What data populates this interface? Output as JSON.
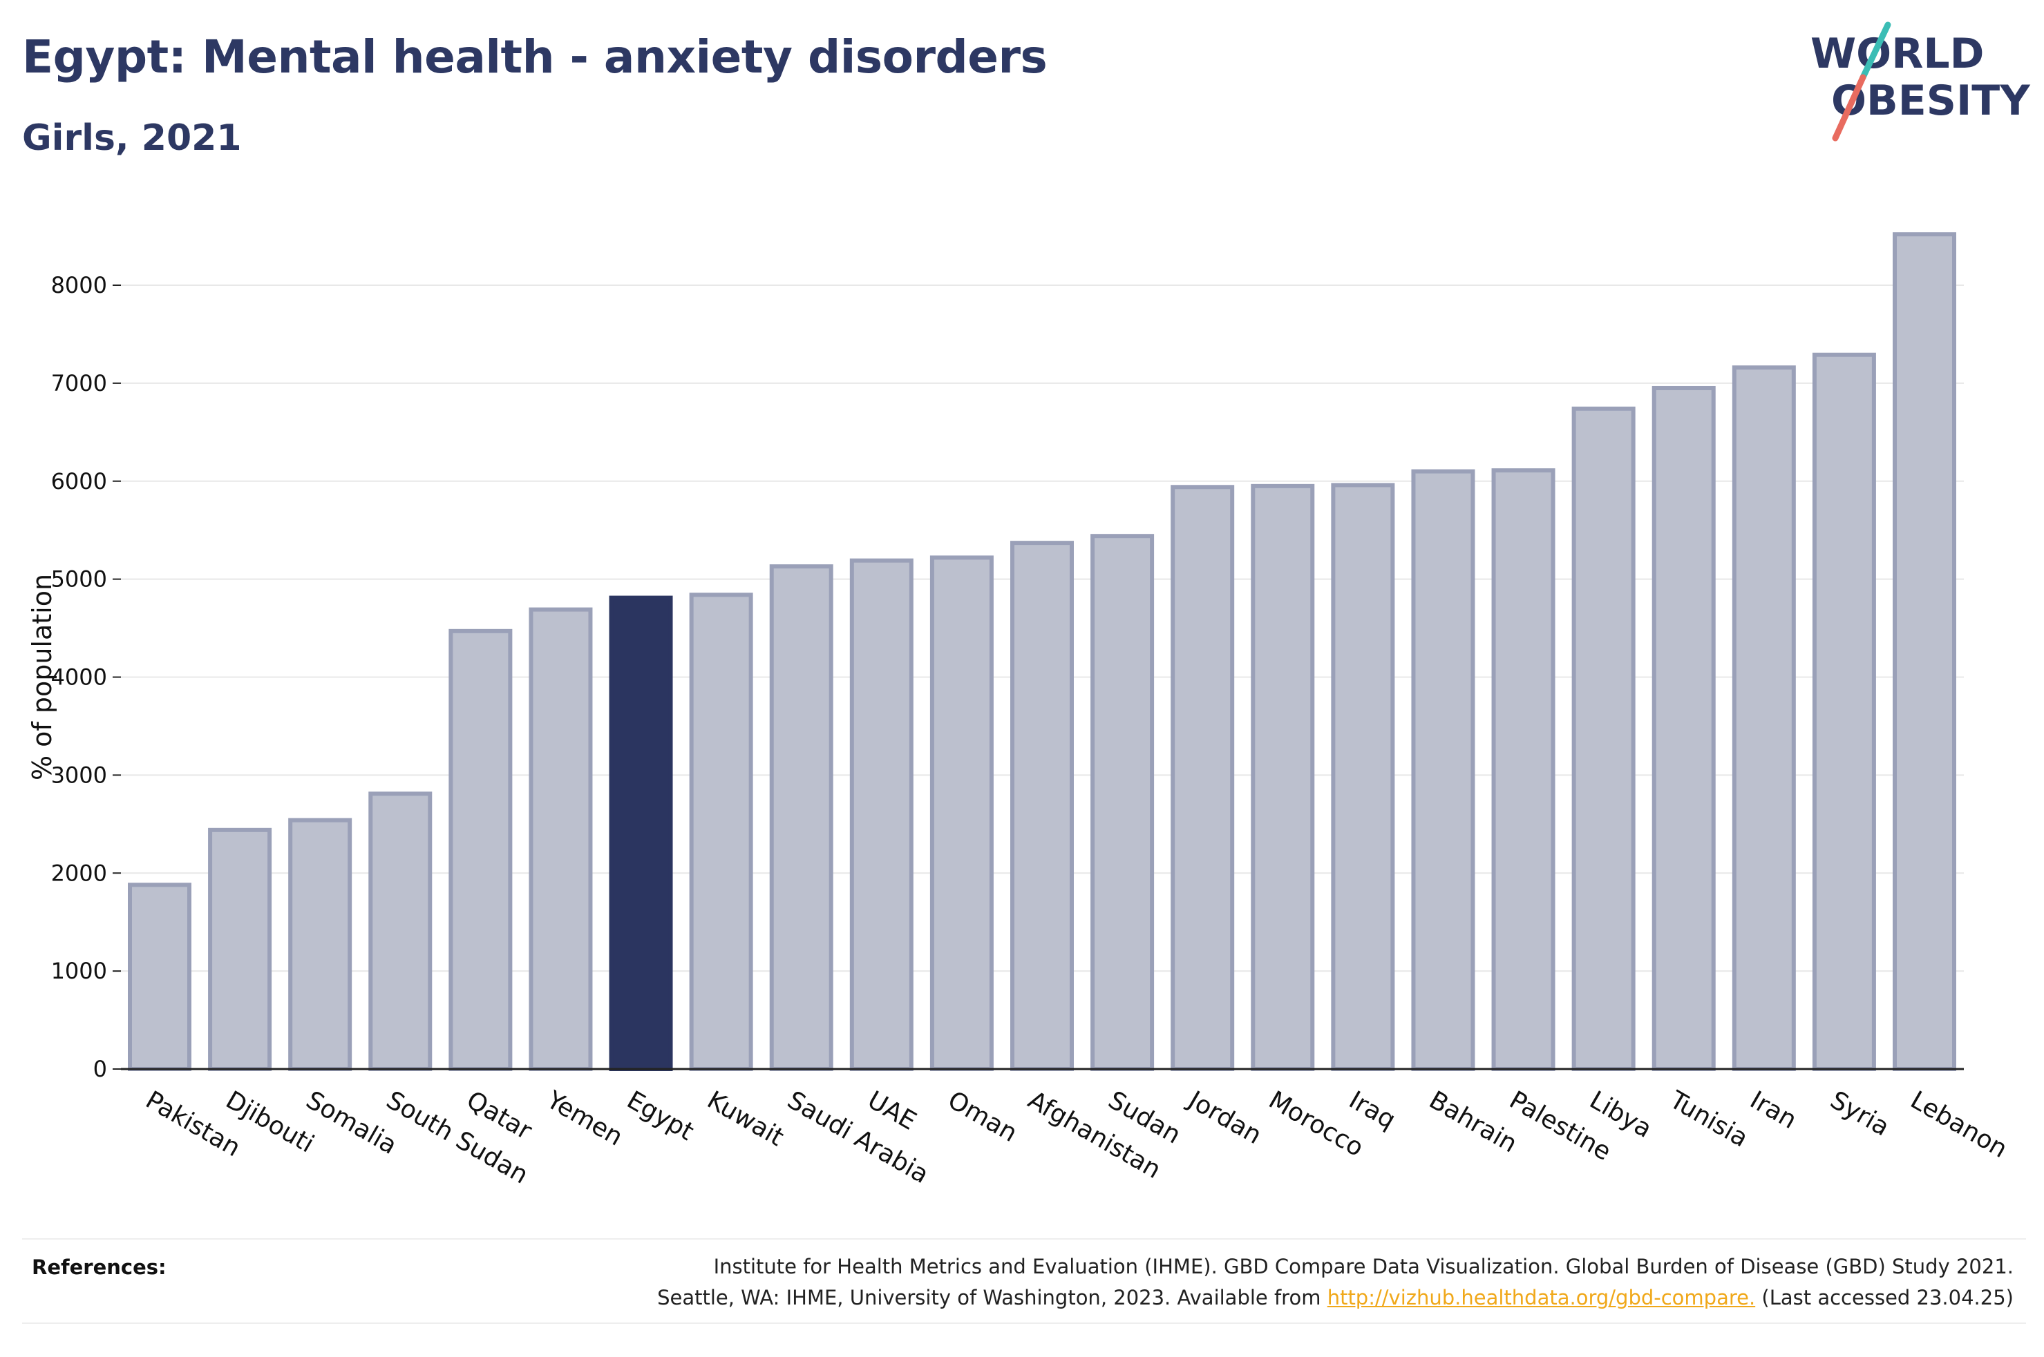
{
  "header": {
    "title": "Egypt: Mental health - anxiety disorders",
    "subtitle": "Girls, 2021"
  },
  "logo": {
    "line1": "WORLD",
    "line2": "OBESITY",
    "text_color": "#2d3863",
    "accent_teal": "#3bbdb5",
    "accent_coral": "#e86b5f"
  },
  "colors": {
    "bar_default": "#bcc0ce",
    "bar_default_stroke": "#9aa0b8",
    "bar_highlight": "#2b3560",
    "grid": "#e8e8e8",
    "axis": "#222222",
    "text": "#111111"
  },
  "chart_data": {
    "type": "bar",
    "title": "Egypt: Mental health - anxiety disorders",
    "subtitle": "Girls, 2021",
    "xlabel": "",
    "ylabel": "% of population",
    "ylim": [
      0,
      8600
    ],
    "yticks": [
      0,
      1000,
      2000,
      3000,
      4000,
      5000,
      6000,
      7000,
      8000
    ],
    "grid": true,
    "highlight": "Egypt",
    "categories": [
      "Pakistan",
      "Djibouti",
      "Somalia",
      "South Sudan",
      "Qatar",
      "Yemen",
      "Egypt",
      "Kuwait",
      "Saudi Arabia",
      "UAE",
      "Oman",
      "Afghanistan",
      "Sudan",
      "Jordan",
      "Morocco",
      "Iraq",
      "Bahrain",
      "Palestine",
      "Libya",
      "Tunisia",
      "Iran",
      "Syria",
      "Lebanon"
    ],
    "values": [
      1880,
      2440,
      2540,
      2810,
      4470,
      4690,
      4810,
      4840,
      5130,
      5190,
      5220,
      5370,
      5440,
      5940,
      5950,
      5960,
      6100,
      6110,
      6740,
      6950,
      7160,
      7290,
      8520
    ]
  },
  "references": {
    "label": "References:",
    "line1": "Institute for Health Metrics and Evaluation (IHME). GBD Compare Data Visualization. Global Burden of Disease (GBD) Study 2021.",
    "line2_prefix": "Seattle, WA: IHME, University of Washington, 2023. Available from ",
    "link": "http://vizhub.healthdata.org/gbd-compare.",
    "line2_suffix": " (Last accessed 23.04.25)"
  }
}
